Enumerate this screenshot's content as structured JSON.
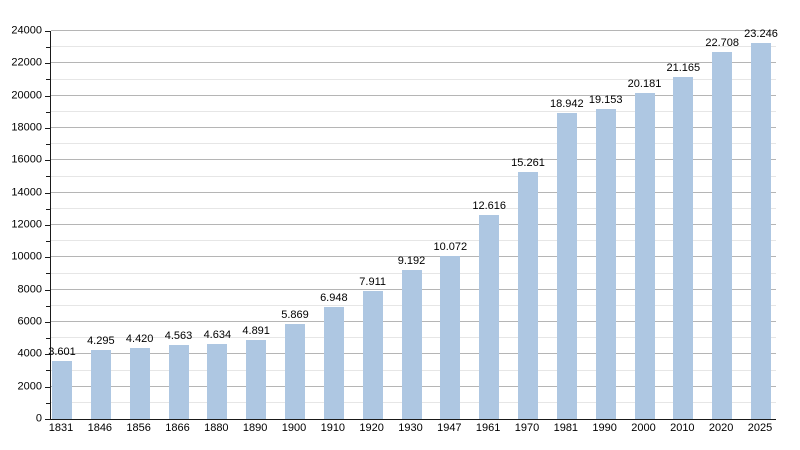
{
  "chart_data": {
    "type": "bar",
    "title": "",
    "xlabel": "",
    "ylabel": "",
    "categories": [
      "1831",
      "1846",
      "1856",
      "1866",
      "1880",
      "1890",
      "1900",
      "1910",
      "1920",
      "1930",
      "1947",
      "1961",
      "1970",
      "1981",
      "1990",
      "2000",
      "2010",
      "2020",
      "2025"
    ],
    "values": [
      3601,
      4295,
      4420,
      4563,
      4634,
      4891,
      5869,
      6948,
      7911,
      9192,
      10072,
      12616,
      15261,
      18942,
      19153,
      20181,
      21165,
      22708,
      23246
    ],
    "value_labels": [
      "3.601",
      "4.295",
      "4.420",
      "4.563",
      "4.634",
      "4.891",
      "5.869",
      "6.948",
      "7.911",
      "9.192",
      "10.072",
      "12.616",
      "15.261",
      "18.942",
      "19.153",
      "20.181",
      "21.165",
      "22.708",
      "23.246"
    ],
    "ylim": [
      0,
      24000
    ],
    "y_major_step": 2000,
    "y_minor_step": 1000,
    "y_tick_labels": [
      "0",
      "2000",
      "4000",
      "6000",
      "8000",
      "10000",
      "12000",
      "14000",
      "16000",
      "18000",
      "20000",
      "22000",
      "24000"
    ],
    "grid": true,
    "legend": null,
    "colors": {
      "bar_fill": "#aec7e2",
      "major_grid": "#b5b5b5",
      "minor_grid": "#e6e6e6",
      "axis": "#1a1a1a",
      "text": "#000000"
    }
  }
}
